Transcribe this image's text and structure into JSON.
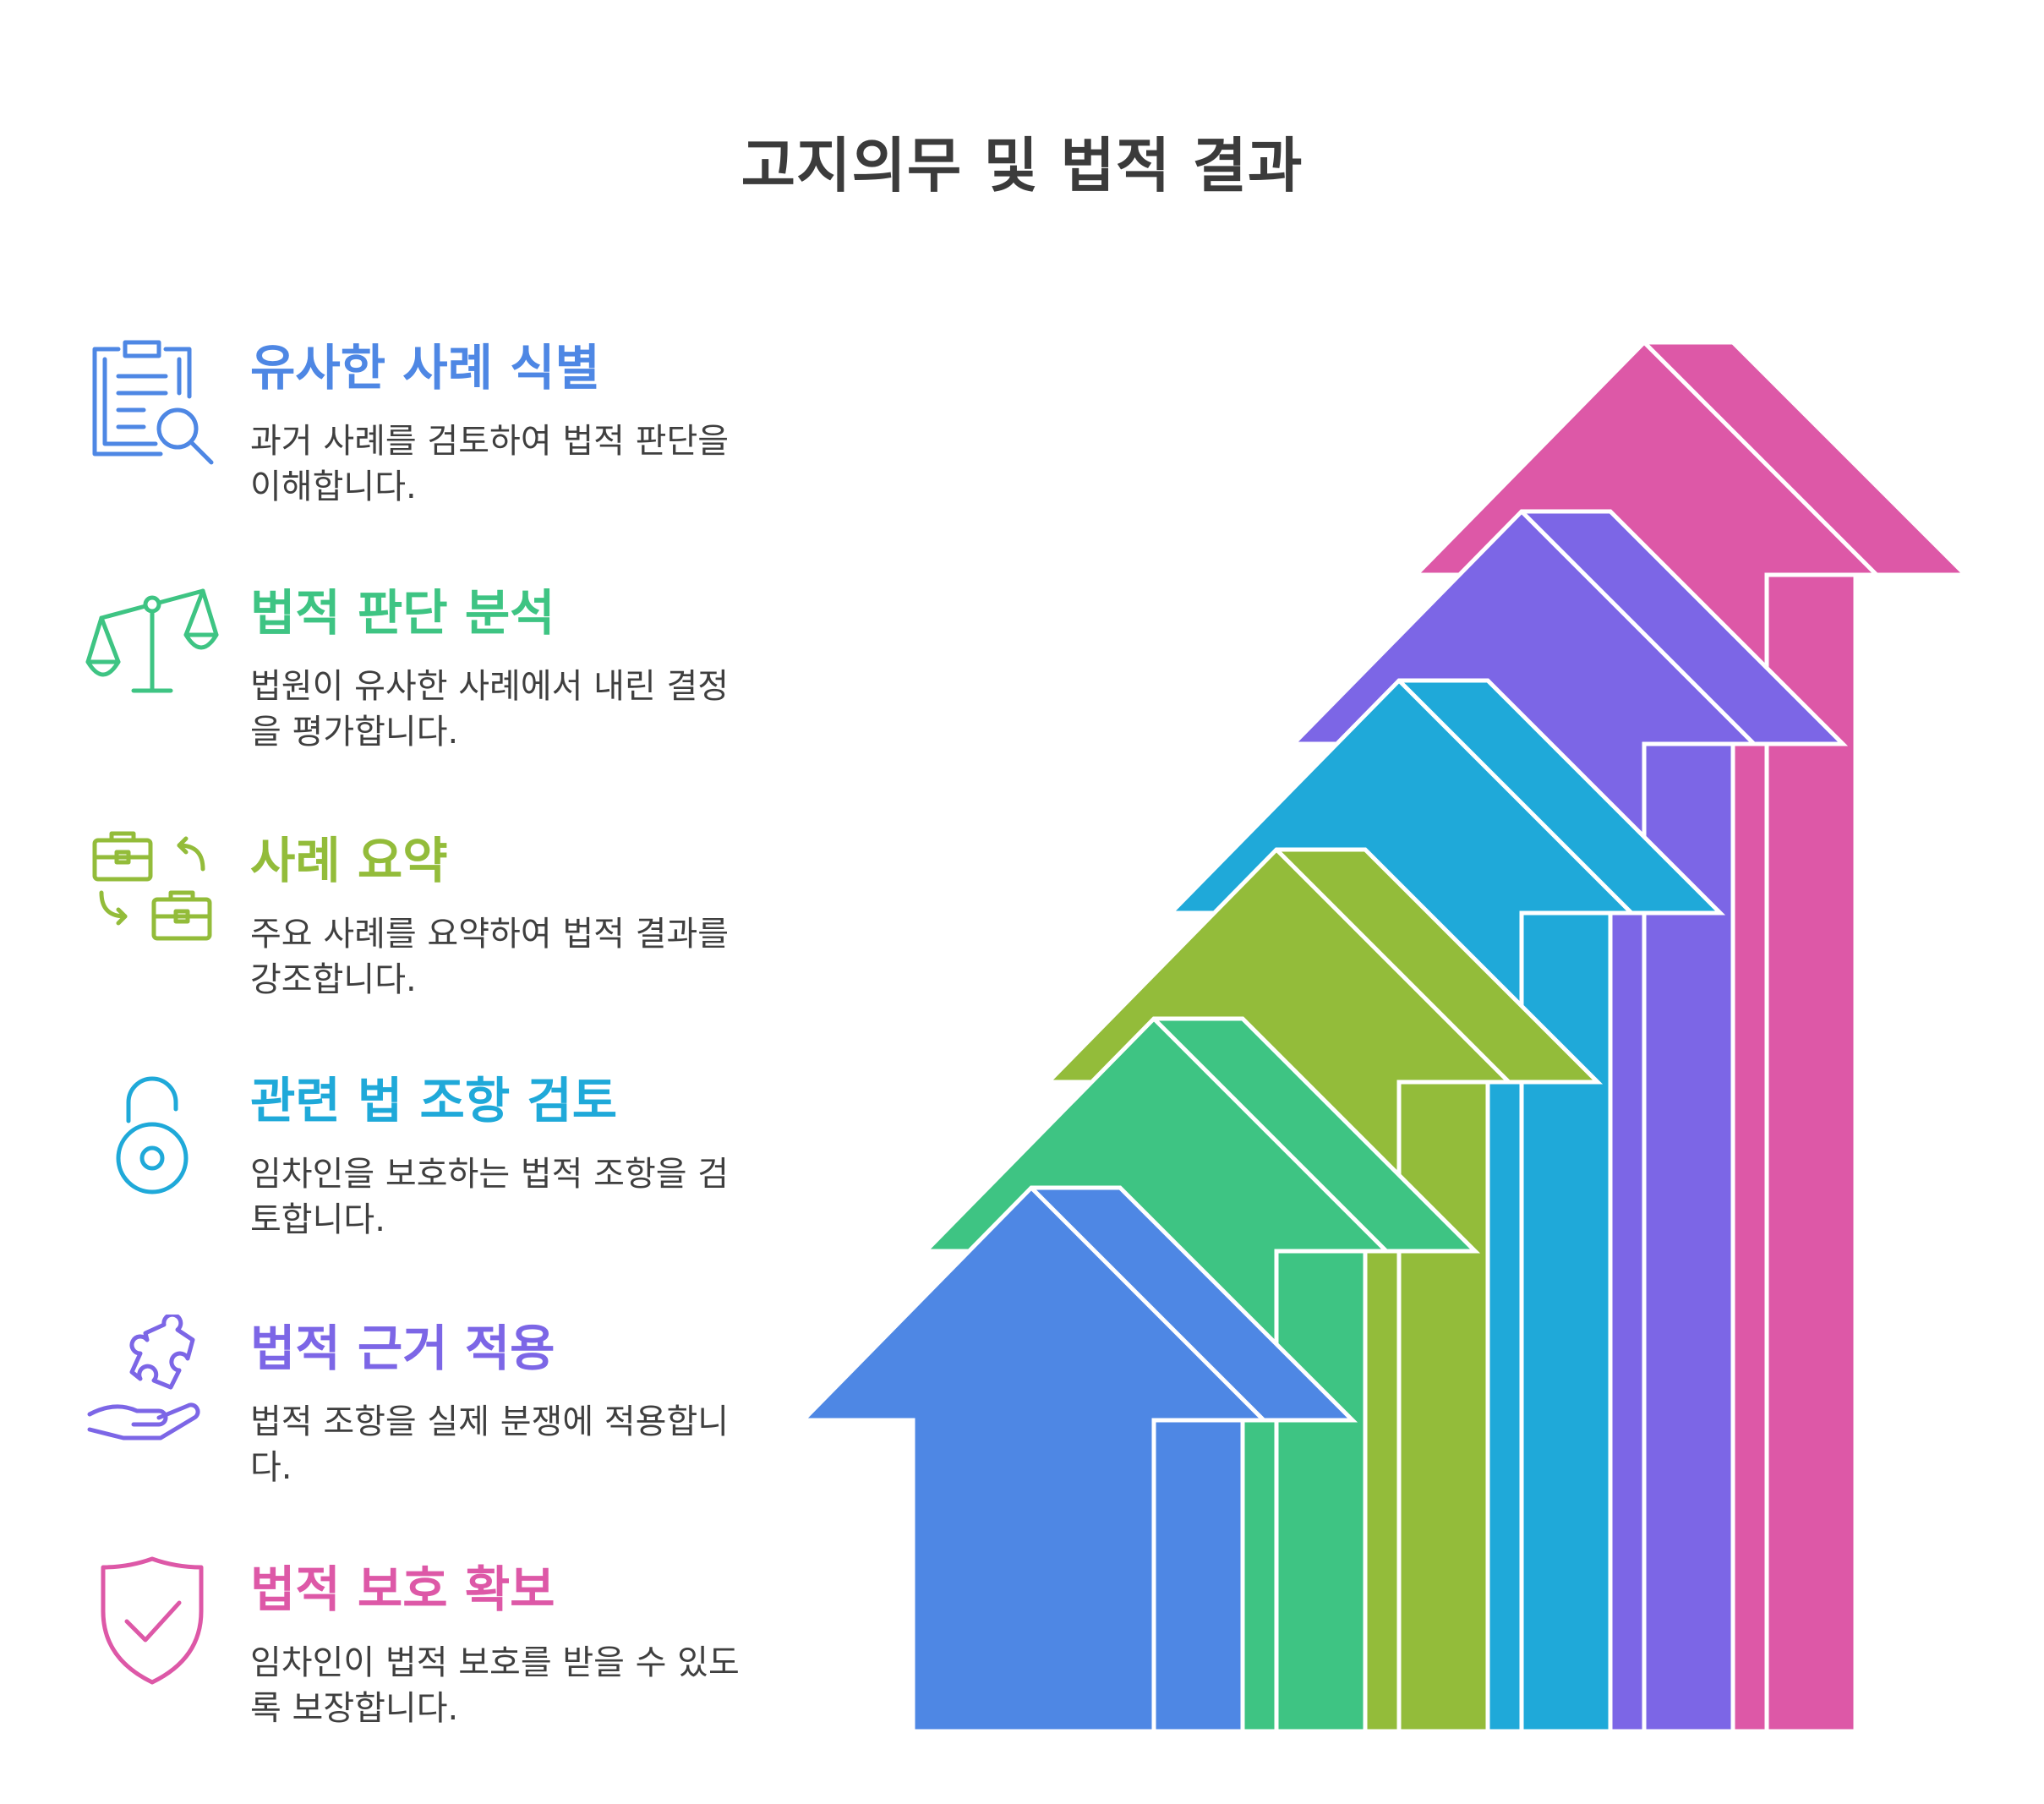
{
  "title": "고지의무 및 법적 결과",
  "steps": [
    {
      "heading": "유사한 사례 식별",
      "description": "과거 사례를 검토하여 법적 판단을 이해합니다.",
      "color": "#4e87e4",
      "icon": "clipboard-search-icon"
    },
    {
      "heading": "법적 판단 분석",
      "description": "법원이 유사한 사례에서 내린 결정을 평가합니다.",
      "color": "#3ec483",
      "icon": "scales-icon"
    },
    {
      "heading": "사례 요약",
      "description": "주요 사례를 요약하여 법적 결과를 강조합니다.",
      "color": "#93bc3a",
      "icon": "briefcase-exchange-icon"
    },
    {
      "heading": "관련 법 조항 검토",
      "description": "임차인을 보호하는 법적 조항을 검토합니다.",
      "color": "#1fa9d9",
      "icon": "unlocked-padlock-icon"
    },
    {
      "heading": "법적 근거 적용",
      "description": "법적 조항을 실제 분쟁에 적용합니다.",
      "color": "#7c66e6",
      "icon": "hand-puzzle-icon"
    },
    {
      "heading": "법적 보호 확보",
      "description": "임차인이 법적 보호를 받을 수 있도록 보장합니다.",
      "color": "#dd58a7",
      "icon": "shield-check-icon"
    }
  ]
}
